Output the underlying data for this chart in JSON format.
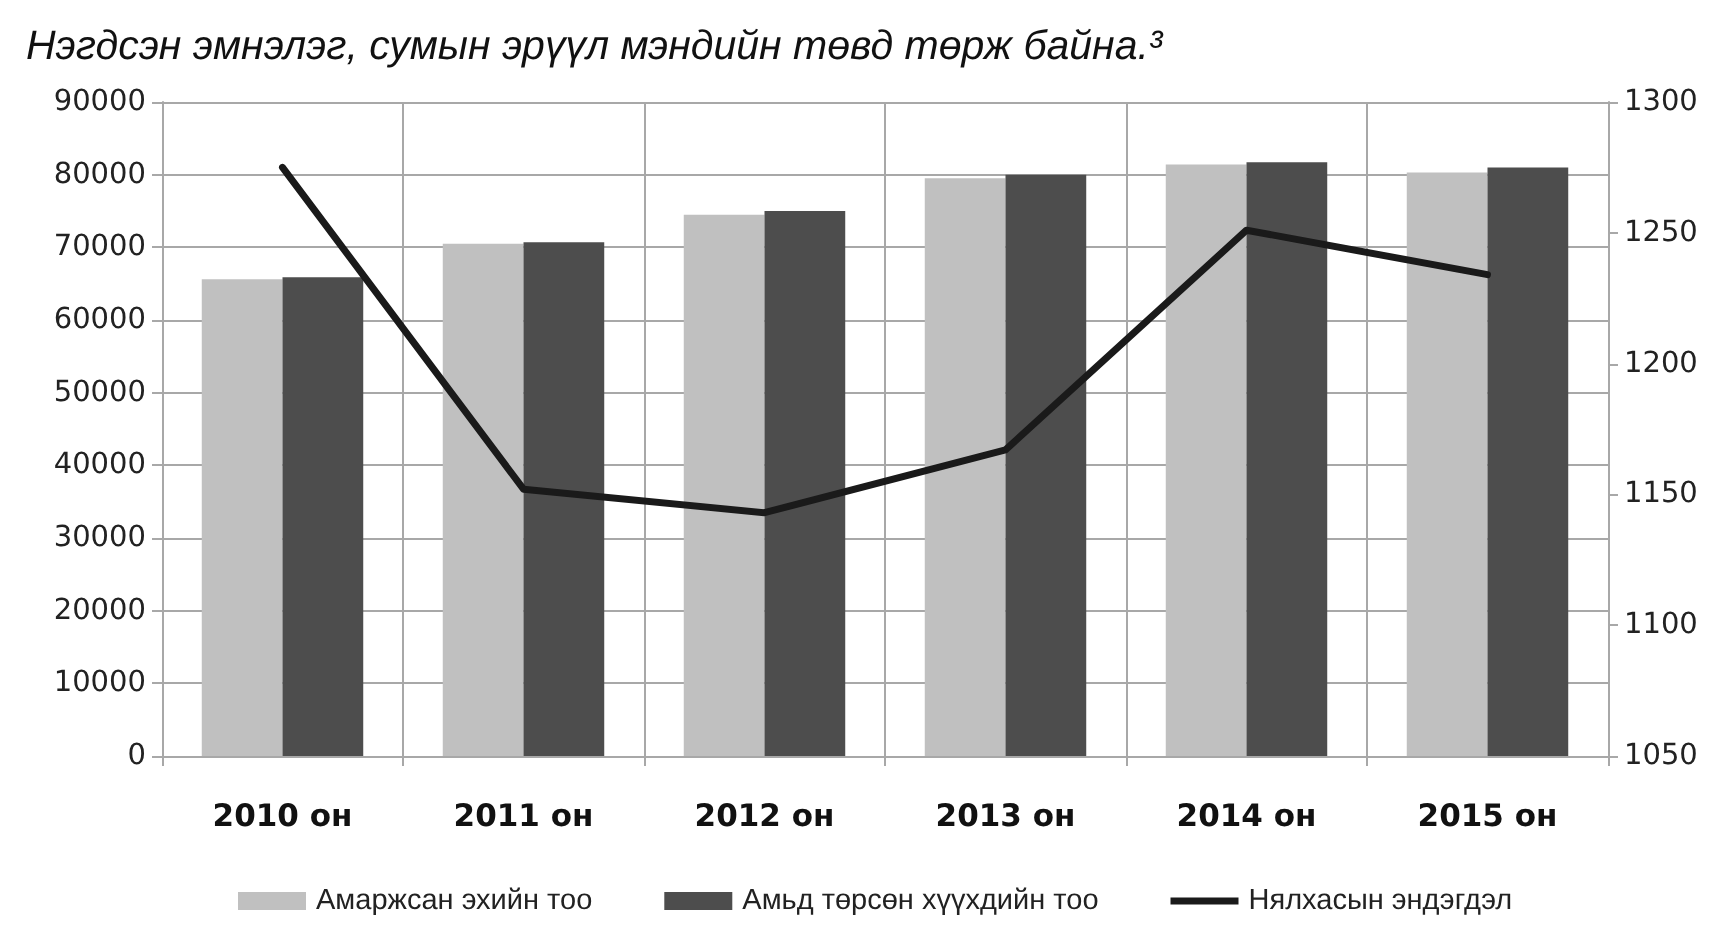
{
  "chart_data": {
    "type": "bar",
    "title": "Нэгдсэн эмнэлэг, сумын эрүүл мэндийн төвд төрж байна.³",
    "categories": [
      "2010 он",
      "2011 он",
      "2012 он",
      "2013 он",
      "2014 он",
      "2015 он"
    ],
    "series": [
      {
        "name": "Амаржсан эхийн тоо",
        "color": "#c0c0c0",
        "values": [
          65600,
          70500,
          74500,
          79500,
          81400,
          80300
        ]
      },
      {
        "name": "Амьд төрсөн хүүхдийн тоо",
        "color": "#4d4d4d",
        "values": [
          65900,
          70700,
          75000,
          80000,
          81700,
          81000
        ]
      },
      {
        "name": "Нялхасын эндэгдэл",
        "type": "line",
        "axis": "y2",
        "color": "#1a1a1a",
        "values": [
          1275,
          1152,
          1143,
          1167,
          1251,
          1234
        ]
      }
    ],
    "ylim": [
      0,
      90000
    ],
    "yticks": [
      0,
      10000,
      20000,
      30000,
      40000,
      50000,
      60000,
      70000,
      80000,
      90000
    ],
    "y2lim": [
      1050,
      1300
    ],
    "y2ticks": [
      1050,
      1100,
      1150,
      1200,
      1250,
      1300
    ],
    "grid": true,
    "legend": "bottom",
    "marker": "none",
    "line_style": "solid"
  }
}
